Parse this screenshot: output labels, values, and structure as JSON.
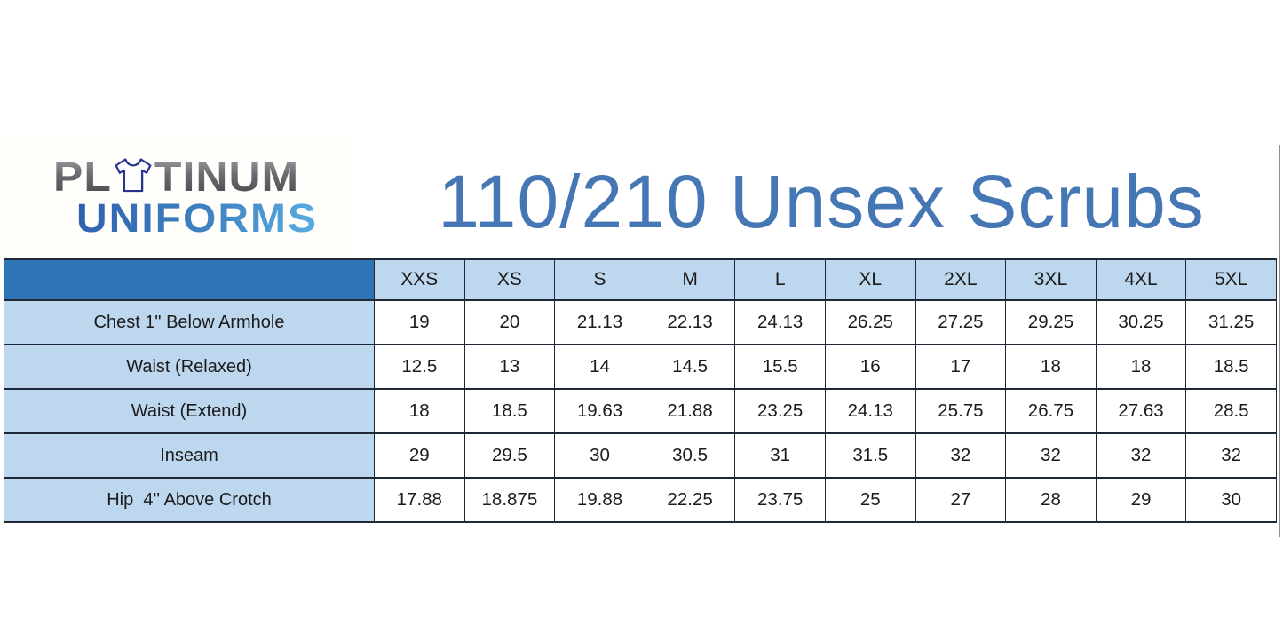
{
  "logo": {
    "word1_pre": "PL",
    "word1_post": "TINUM",
    "word2": "UNIFORMS",
    "icon": "tshirt-icon"
  },
  "title": "110/210 Unsex Scrubs",
  "table": {
    "sizes": [
      "XXS",
      "XS",
      "S",
      "M",
      "L",
      "XL",
      "2XL",
      "3XL",
      "4XL",
      "5XL"
    ],
    "rows": [
      {
        "label": "Chest 1\" Below Armhole",
        "values": [
          "19",
          "20",
          "21.13",
          "22.13",
          "24.13",
          "26.25",
          "27.25",
          "29.25",
          "30.25",
          "31.25"
        ]
      },
      {
        "label": "Waist (Relaxed)",
        "values": [
          "12.5",
          "13",
          "14",
          "14.5",
          "15.5",
          "16",
          "17",
          "18",
          "18",
          "18.5"
        ]
      },
      {
        "label": "Waist (Extend)",
        "values": [
          "18",
          "18.5",
          "19.63",
          "21.88",
          "23.25",
          "24.13",
          "25.75",
          "26.75",
          "27.63",
          "28.5"
        ]
      },
      {
        "label": "Inseam",
        "values": [
          "29",
          "29.5",
          "30",
          "30.5",
          "31",
          "31.5",
          "32",
          "32",
          "32",
          "32"
        ]
      },
      {
        "label": "Hip  4'' Above Crotch",
        "values": [
          "17.88",
          "18.875",
          "19.88",
          "22.25",
          "23.75",
          "25",
          "27",
          "28",
          "29",
          "30"
        ]
      }
    ]
  },
  "colors": {
    "header_fill": "#2e75b6",
    "size_header_fill": "#bdd7ee",
    "label_fill": "#bdd7ee",
    "cell_fill": "#ffffff",
    "border": "#1e2836",
    "title_blue": "#4577b5",
    "logo_gray": "#58595b",
    "logo_blue": "#2d6cb5"
  }
}
